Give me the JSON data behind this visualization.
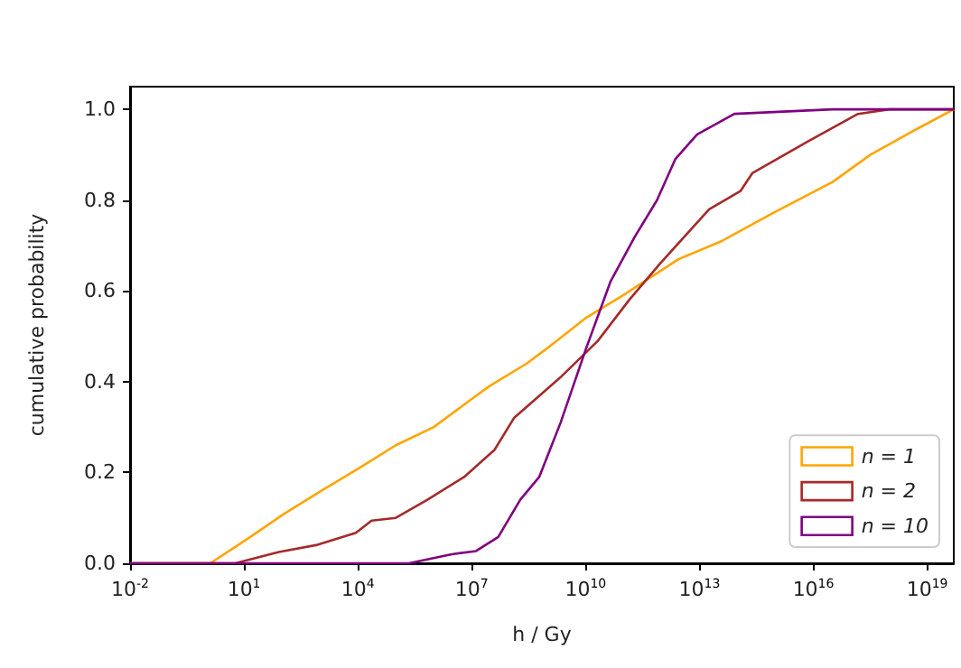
{
  "chart_data": {
    "type": "line",
    "xlabel": "h / Gy",
    "ylabel": "cumulative probability",
    "log": "x",
    "grid": false,
    "legend": "bottom right",
    "marker": "none",
    "line_style": "solid",
    "xlim": [
      0.01,
      5e+19
    ],
    "xticks": [
      {
        "value": 0.01,
        "label": "10$^{-2}$"
      },
      {
        "value": 10,
        "label": "10$^{1}$"
      },
      {
        "value": 10000.0,
        "label": "10$^{4}$"
      },
      {
        "value": 10000000.0,
        "label": "10$^{7}$"
      },
      {
        "value": 10000000000.0,
        "label": "10$^{10}$"
      },
      {
        "value": 10000000000000.0,
        "label": "10$^{13}$"
      },
      {
        "value": 1e+16,
        "label": "10$^{16}$"
      },
      {
        "value": 1e+19,
        "label": "10$^{19}$"
      }
    ],
    "ylim": [
      0,
      1.05
    ],
    "yticks": [
      {
        "value": 0,
        "label": "0.0"
      },
      {
        "value": 0.2,
        "label": "0.2"
      },
      {
        "value": 0.4,
        "label": "0.4"
      },
      {
        "value": 0.6,
        "label": "0.6"
      },
      {
        "value": 0.8,
        "label": "0.8"
      },
      {
        "value": 1,
        "label": "1.0"
      }
    ],
    "series": [
      {
        "name": "n = 1",
        "color": "#ffa500",
        "x": [
          0.01,
          1.3,
          13,
          120,
          1100,
          11000,
          100000,
          1000000.0,
          9300000.0,
          29000000.0,
          280000000.0,
          850000000.0,
          10000000000.0,
          95000000000.0,
          2800000000000.0,
          39000000000000.0,
          790000000000000.0,
          3.2e+16,
          3.2e+17,
          6.3e+18,
          5e+19
        ],
        "values": [
          0,
          0,
          0.055,
          0.11,
          0.16,
          0.21,
          0.26,
          0.3,
          0.36,
          0.39,
          0.44,
          0.47,
          0.54,
          0.59,
          0.67,
          0.71,
          0.77,
          0.84,
          0.9,
          0.96,
          1.0
        ]
      },
      {
        "name": "n = 2",
        "color": "#a52a2a",
        "x": [
          0.01,
          5.9,
          83,
          790,
          8900,
          23000,
          100000,
          680000,
          6300000.0,
          40000000.0,
          130000000.0,
          850000000.0,
          2200000000.0,
          21000000000.0,
          140000000000.0,
          910000000000.0,
          18000000000000.0,
          120000000000000.0,
          250000000000000.0,
          7400000000000000.0,
          1.5e+17,
          1e+18,
          5e+19
        ],
        "values": [
          0,
          0,
          0.025,
          0.04,
          0.067,
          0.094,
          0.1,
          0.14,
          0.19,
          0.25,
          0.32,
          0.38,
          0.41,
          0.49,
          0.58,
          0.66,
          0.78,
          0.82,
          0.86,
          0.93,
          0.99,
          1.0,
          1.0
        ]
      },
      {
        "name": "n = 10",
        "color": "#800080",
        "x": [
          0.01,
          220000,
          3000000.0,
          13000000.0,
          50000000.0,
          190000000.0,
          600000000.0,
          2200000000.0,
          10000000000.0,
          45000000000.0,
          200000000000.0,
          760000000000.0,
          2300000000000.0,
          8700000000000.0,
          83000000000000.0,
          3.2e+16,
          5e+19
        ],
        "values": [
          0,
          0,
          0.02,
          0.027,
          0.058,
          0.14,
          0.19,
          0.31,
          0.47,
          0.62,
          0.72,
          0.8,
          0.89,
          0.945,
          0.99,
          1.0,
          1.0
        ]
      }
    ]
  }
}
